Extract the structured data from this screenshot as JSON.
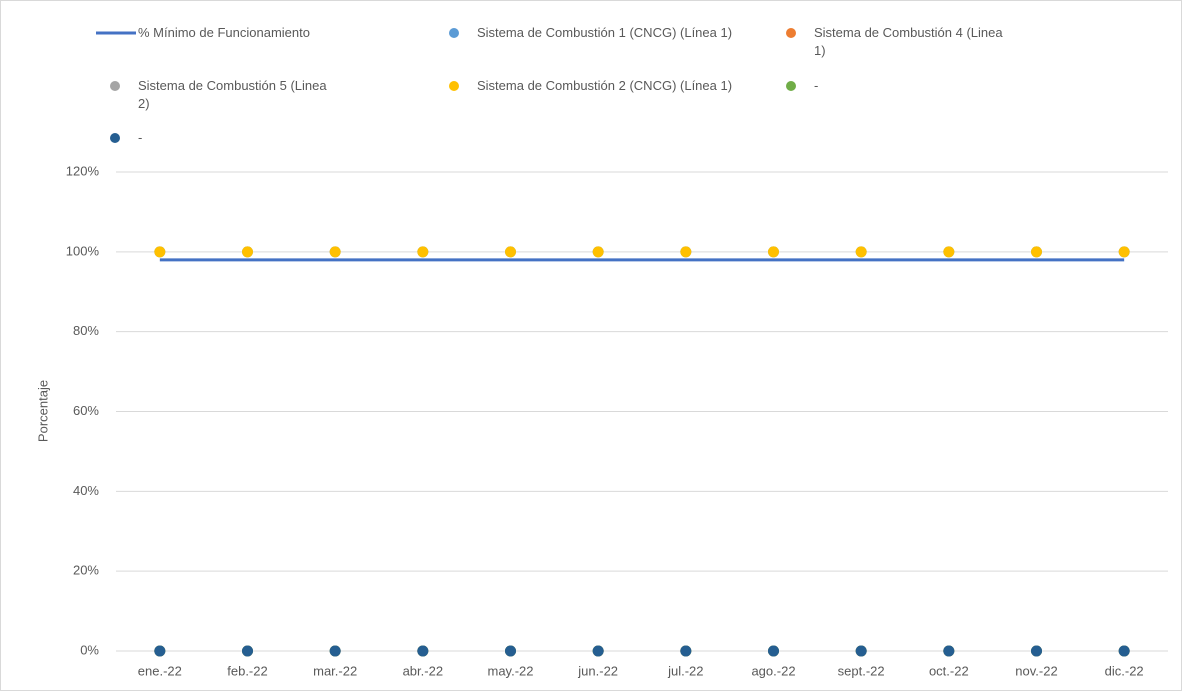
{
  "chart_data": {
    "type": "line",
    "y_label": "Porcentaje",
    "categories": [
      "ene.-22",
      "feb.-22",
      "mar.-22",
      "abr.-22",
      "may.-22",
      "jun.-22",
      "jul.-22",
      "ago.-22",
      "sept.-22",
      "oct.-22",
      "nov.-22",
      "dic.-22"
    ],
    "ylim": [
      0,
      120
    ],
    "yticks": [
      {
        "value": 0,
        "label": "0%"
      },
      {
        "value": 20,
        "label": "20%"
      },
      {
        "value": 40,
        "label": "40%"
      },
      {
        "value": 60,
        "label": "60%"
      },
      {
        "value": 80,
        "label": "80%"
      },
      {
        "value": 100,
        "label": "100%"
      },
      {
        "value": 120,
        "label": "120%"
      }
    ],
    "grid": true,
    "series": [
      {
        "name": "% Mínimo de Funcionamiento",
        "type": "line",
        "color": "#4472c4",
        "values": [
          98,
          98,
          98,
          98,
          98,
          98,
          98,
          98,
          98,
          98,
          98,
          98
        ]
      },
      {
        "name": "Sistema de Combustión 1 (CNCG) (Línea 1)",
        "type": "scatter",
        "color": "#5b9bd5",
        "values": [
          100,
          100,
          100,
          100,
          100,
          100,
          100,
          100,
          100,
          100,
          100,
          100
        ]
      },
      {
        "name": "Sistema de Combustión 4 (Linea 1)",
        "type": "scatter",
        "color": "#ed7d31",
        "values": [
          0,
          0,
          0,
          0,
          0,
          0,
          0,
          0,
          0,
          0,
          0,
          0
        ]
      },
      {
        "name": "Sistema de Combustión 5 (Linea 2)",
        "type": "scatter",
        "color": "#a5a5a5",
        "values": [
          0,
          0,
          0,
          0,
          0,
          0,
          0,
          0,
          0,
          0,
          0,
          0
        ]
      },
      {
        "name": "Sistema de Combustión 2 (CNCG) (Línea 1)",
        "type": "scatter",
        "color": "#ffc000",
        "values": [
          100,
          100,
          100,
          100,
          100,
          100,
          100,
          100,
          100,
          100,
          100,
          100
        ]
      },
      {
        "name": "-",
        "type": "scatter",
        "color": "#70ad47",
        "values": [
          0,
          0,
          0,
          0,
          0,
          0,
          0,
          0,
          0,
          0,
          0,
          0
        ]
      },
      {
        "name": "-",
        "type": "scatter",
        "color": "#255e91",
        "values": [
          0,
          0,
          0,
          0,
          0,
          0,
          0,
          0,
          0,
          0,
          0,
          0
        ]
      }
    ]
  }
}
